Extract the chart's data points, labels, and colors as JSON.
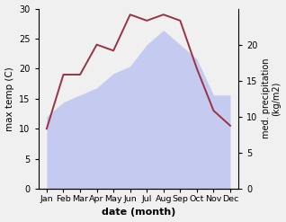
{
  "months": [
    "Jan",
    "Feb",
    "Mar",
    "Apr",
    "May",
    "Jun",
    "Jul",
    "Aug",
    "Sep",
    "Oct",
    "Nov",
    "Dec"
  ],
  "x": [
    1,
    2,
    3,
    4,
    5,
    6,
    7,
    8,
    9,
    10,
    11,
    12
  ],
  "temp": [
    10,
    19,
    19,
    24,
    23,
    29,
    28,
    29,
    28,
    20,
    13,
    10.5
  ],
  "precip": [
    10,
    12,
    13,
    14,
    16,
    17,
    20,
    22,
    20,
    18,
    13,
    13
  ],
  "temp_color": "#993344",
  "precip_fill": "#c5caf0",
  "left_ylim": [
    0,
    30
  ],
  "right_ylim": [
    0,
    25
  ],
  "right_yticks": [
    0,
    5,
    10,
    15,
    20
  ],
  "left_yticks": [
    0,
    5,
    10,
    15,
    20,
    25,
    30
  ],
  "xlabel": "date (month)",
  "ylabel_left": "max temp (C)",
  "ylabel_right": "med. precipitation\n(kg/m2)",
  "xlim": [
    0.5,
    12.5
  ]
}
